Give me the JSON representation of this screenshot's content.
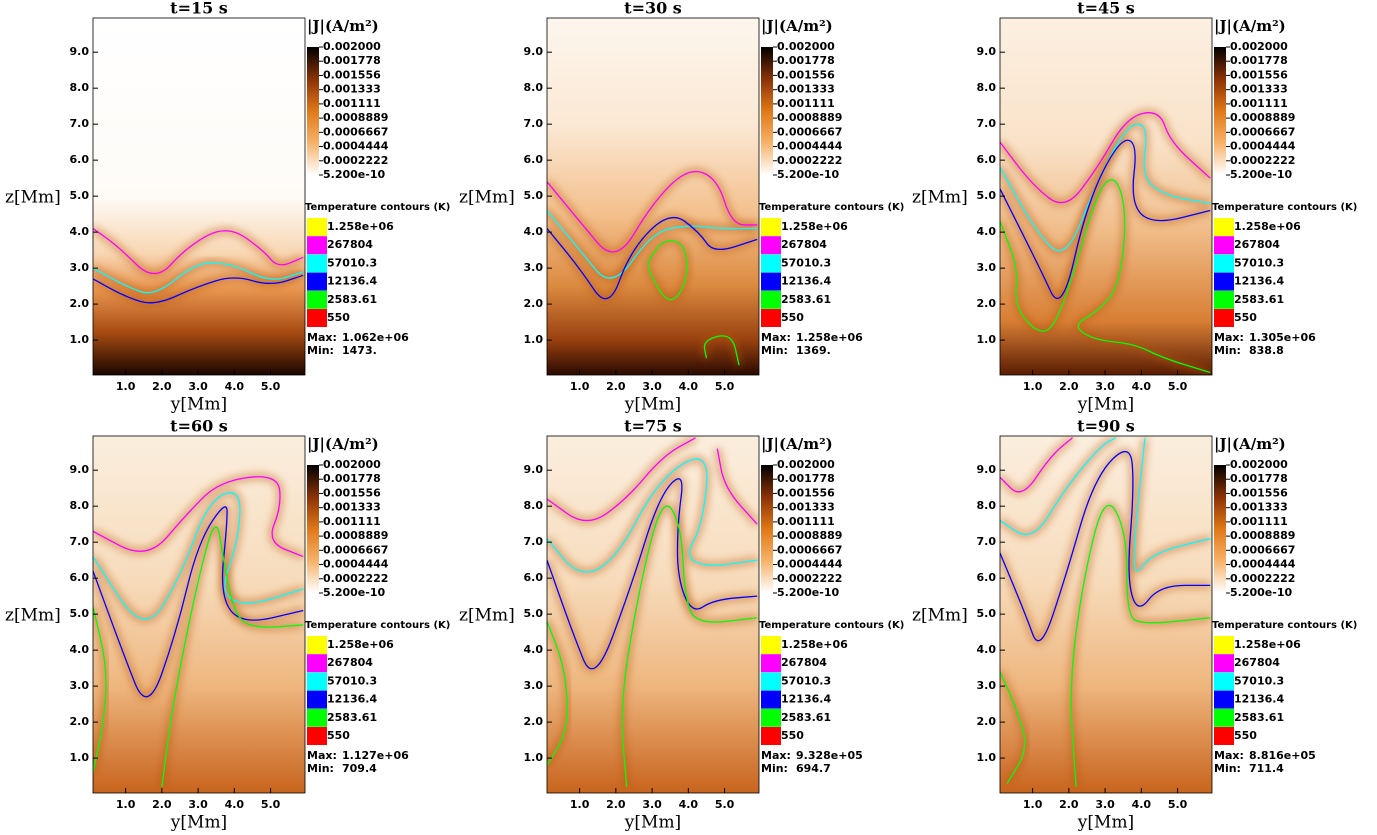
{
  "axes": {
    "xlabel": "y[Mm]",
    "ylabel": "z[Mm]",
    "xlim": [
      0.1,
      5.95
    ],
    "ylim": [
      0.03,
      9.95
    ],
    "xticks": [
      {
        "value": 1,
        "label": "1.0"
      },
      {
        "value": 2,
        "label": "2.0"
      },
      {
        "value": 3,
        "label": "3.0"
      },
      {
        "value": 4,
        "label": "4.0"
      },
      {
        "value": 5,
        "label": "5.0"
      }
    ],
    "yticks": [
      {
        "value": 1,
        "label": "1.0"
      },
      {
        "value": 2,
        "label": "2.0"
      },
      {
        "value": 3,
        "label": "3.0"
      },
      {
        "value": 4,
        "label": "4.0"
      },
      {
        "value": 5,
        "label": "5.0"
      },
      {
        "value": 6,
        "label": "6.0"
      },
      {
        "value": 7,
        "label": "7.0"
      },
      {
        "value": 8,
        "label": "8.0"
      },
      {
        "value": 9,
        "label": "9.0"
      }
    ]
  },
  "colorbar": {
    "title": "|J|(A/m²)",
    "colormap": [
      "#ffffff",
      "#f7b26a",
      "#e07818",
      "#8a3206",
      "#000000"
    ],
    "ticks": [
      {
        "value": 0.002,
        "label": "0.002000"
      },
      {
        "value": 0.001778,
        "label": "0.001778"
      },
      {
        "value": 0.001556,
        "label": "0.001556"
      },
      {
        "value": 0.001333,
        "label": "0.001333"
      },
      {
        "value": 0.001111,
        "label": "0.001111"
      },
      {
        "value": 0.0008889,
        "label": "0.0008889"
      },
      {
        "value": 0.0006667,
        "label": "0.0006667"
      },
      {
        "value": 0.0004444,
        "label": "0.0004444"
      },
      {
        "value": 0.0002222,
        "label": "0.0002222"
      },
      {
        "value": 5.2e-10,
        "label": "5.200e-10"
      }
    ]
  },
  "contours": {
    "title": "Temperature contours (K)",
    "levels": [
      {
        "label": "1.258e+06",
        "color": "#ffff00"
      },
      {
        "label": "267804",
        "color": "#ff00ff"
      },
      {
        "label": "57010.3",
        "color": "#00ffff"
      },
      {
        "label": "12136.4",
        "color": "#0000ff"
      },
      {
        "label": "2583.61",
        "color": "#00ff00"
      },
      {
        "label": "550",
        "color": "#ff0000"
      }
    ]
  },
  "max_label": "Max:",
  "min_label": "Min:",
  "chart_data": [
    {
      "type": "heatmap",
      "title": "t=15 s",
      "max": "1.062e+06",
      "min": "1473."
    },
    {
      "type": "heatmap",
      "title": "t=30 s",
      "max": "1.258e+06",
      "min": "1369."
    },
    {
      "type": "heatmap",
      "title": "t=45 s",
      "max": "1.305e+06",
      "min": "838.8"
    },
    {
      "type": "heatmap",
      "title": "t=60 s",
      "max": "1.127e+06",
      "min": "709.4"
    },
    {
      "type": "heatmap",
      "title": "t=75 s",
      "max": "9.328e+05",
      "min": "694.7"
    },
    {
      "type": "heatmap",
      "title": "t=90 s",
      "max": "8.816e+05",
      "min": "711.4"
    }
  ]
}
